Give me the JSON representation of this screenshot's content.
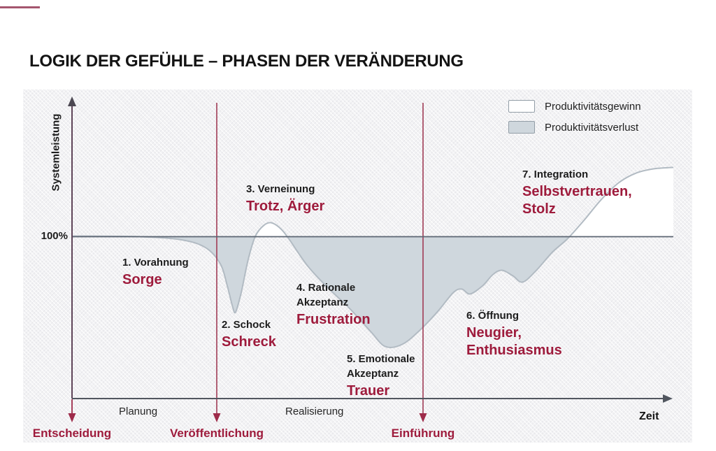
{
  "page": {
    "title": "LOGIK DER GEFÜHLE – PHASEN DER VERÄNDERUNG"
  },
  "colors": {
    "accent_red_text": "#9e1b3c",
    "accent_bar": "#a4566e",
    "arrow_red": "#9e2b4a",
    "loss_fill": "#cfd7dd",
    "gain_fill": "#ffffff",
    "curve_stroke": "#b2bbc3",
    "baseline_stroke": "#5b6572"
  },
  "chart_data": {
    "type": "area",
    "title": "LOGIK DER GEFÜHLE – PHASEN DER VERÄNDERUNG",
    "xlabel": "Zeit",
    "ylabel": "Systemleistung",
    "baseline": {
      "label": "100%",
      "value": 100
    },
    "ylim": [
      0,
      150
    ],
    "grid": false,
    "legend_position": "top-right",
    "legend": [
      {
        "label": "Produktivitätsgewinn",
        "fill": "gain"
      },
      {
        "label": "Produktivitätsverlust",
        "fill": "loss"
      }
    ],
    "series": [
      {
        "name": "Systemleistung",
        "points": [
          [
            0,
            100.4
          ],
          [
            11.3,
            100.0
          ],
          [
            18.3,
            98.0
          ],
          [
            22.3,
            93.0
          ],
          [
            24.7,
            83.0
          ],
          [
            25.8,
            70.0
          ],
          [
            26.7,
            57.0
          ],
          [
            27.2,
            53.5
          ],
          [
            28.1,
            65.0
          ],
          [
            29.3,
            86.0
          ],
          [
            30.5,
            100.4
          ],
          [
            31.9,
            107.0
          ],
          [
            33.1,
            108.6
          ],
          [
            34.5,
            105.6
          ],
          [
            36.0,
            99.0
          ],
          [
            39.2,
            81.9
          ],
          [
            42.7,
            68.0
          ],
          [
            46.2,
            55.6
          ],
          [
            49.7,
            41.4
          ],
          [
            52.1,
            32.3
          ],
          [
            54.9,
            33.6
          ],
          [
            57.8,
            42.2
          ],
          [
            60.7,
            53.4
          ],
          [
            63.4,
            65.5
          ],
          [
            64.8,
            67.7
          ],
          [
            66.2,
            64.7
          ],
          [
            68.3,
            69.8
          ],
          [
            70.0,
            76.7
          ],
          [
            71.5,
            79.3
          ],
          [
            73.3,
            75.9
          ],
          [
            74.9,
            72.0
          ],
          [
            77.0,
            78.4
          ],
          [
            79.9,
            90.5
          ],
          [
            82.4,
            98.7
          ],
          [
            85.1,
            109.9
          ],
          [
            88.0,
            122.8
          ],
          [
            90.9,
            133.2
          ],
          [
            93.8,
            139.2
          ],
          [
            96.7,
            141.8
          ],
          [
            100,
            142.7
          ]
        ]
      }
    ],
    "phases": [
      {
        "number": "1.",
        "name": "Vorahnung",
        "emotion": "Sorge"
      },
      {
        "number": "2.",
        "name": "Schock",
        "emotion": "Schreck"
      },
      {
        "number": "3.",
        "name": "Verneinung",
        "emotion": "Trotz, Ärger"
      },
      {
        "number": "4.",
        "name": "Rationale Akzeptanz",
        "emotion": "Frustration"
      },
      {
        "number": "5.",
        "name": "Emotionale Akzeptanz",
        "emotion": "Trauer"
      },
      {
        "number": "6.",
        "name": "Öffnung",
        "emotion": "Neugier, Enthusiasmus"
      },
      {
        "number": "7.",
        "name": "Integration",
        "emotion": "Selbstvertrauen, Stolz"
      }
    ],
    "timeline_segments": [
      {
        "label": "Planung"
      },
      {
        "label": "Realisierung"
      }
    ],
    "milestones": [
      {
        "label": "Entscheidung",
        "t": 0
      },
      {
        "label": "Veröffentlichung",
        "t": 24.1
      },
      {
        "label": "Einführung",
        "t": 58.4
      }
    ]
  }
}
